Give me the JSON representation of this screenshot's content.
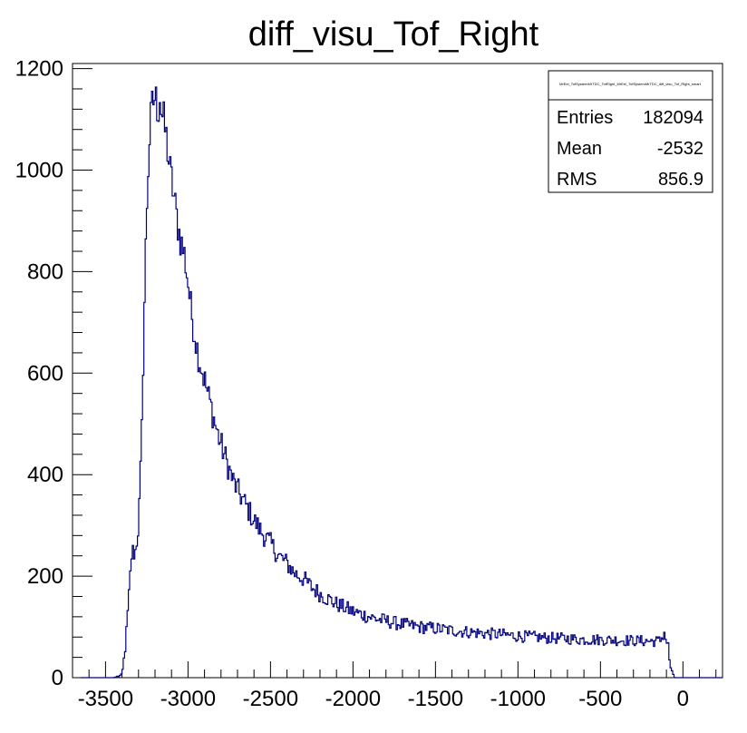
{
  "chart_data": {
    "type": "histogram",
    "title": "diff_visu_Tof_Right",
    "xlabel": "",
    "ylabel": "",
    "xlim": [
      -3700,
      240
    ],
    "ylim": [
      0,
      1210
    ],
    "x_ticks": [
      -3500,
      -3000,
      -2500,
      -2000,
      -1500,
      -1000,
      -500,
      0
    ],
    "x_tick_labels": [
      "-3500",
      "-3000",
      "-2500",
      "-2000",
      "-1500",
      "-1000",
      "-500",
      "0"
    ],
    "y_ticks": [
      0,
      200,
      400,
      600,
      800,
      1000,
      1200
    ],
    "y_tick_labels": [
      "0",
      "200",
      "400",
      "600",
      "800",
      "1000",
      "1200"
    ],
    "line_color": "#00007f",
    "curve_points": [
      [
        -3650,
        0
      ],
      [
        -3450,
        0
      ],
      [
        -3400,
        5
      ],
      [
        -3380,
        60
      ],
      [
        -3360,
        150
      ],
      [
        -3340,
        250
      ],
      [
        -3320,
        245
      ],
      [
        -3300,
        300
      ],
      [
        -3290,
        380
      ],
      [
        -3280,
        480
      ],
      [
        -3270,
        650
      ],
      [
        -3260,
        800
      ],
      [
        -3250,
        920
      ],
      [
        -3240,
        1010
      ],
      [
        -3230,
        1080
      ],
      [
        -3215,
        1130
      ],
      [
        -3200,
        1145
      ],
      [
        -3190,
        1130
      ],
      [
        -3180,
        1120
      ],
      [
        -3170,
        1150
      ],
      [
        -3160,
        1110
      ],
      [
        -3150,
        1100
      ],
      [
        -3130,
        1060
      ],
      [
        -3110,
        1000
      ],
      [
        -3090,
        960
      ],
      [
        -3070,
        910
      ],
      [
        -3050,
        870
      ],
      [
        -3020,
        830
      ],
      [
        -3000,
        780
      ],
      [
        -2980,
        720
      ],
      [
        -2960,
        680
      ],
      [
        -2940,
        640
      ],
      [
        -2910,
        600
      ],
      [
        -2880,
        560
      ],
      [
        -2850,
        520
      ],
      [
        -2820,
        480
      ],
      [
        -2790,
        450
      ],
      [
        -2760,
        420
      ],
      [
        -2730,
        390
      ],
      [
        -2700,
        370
      ],
      [
        -2650,
        340
      ],
      [
        -2600,
        310
      ],
      [
        -2550,
        285
      ],
      [
        -2500,
        265
      ],
      [
        -2450,
        240
      ],
      [
        -2400,
        225
      ],
      [
        -2350,
        205
      ],
      [
        -2300,
        195
      ],
      [
        -2250,
        178
      ],
      [
        -2200,
        165
      ],
      [
        -2150,
        155
      ],
      [
        -2100,
        145
      ],
      [
        -2050,
        138
      ],
      [
        -2000,
        130
      ],
      [
        -1950,
        125
      ],
      [
        -1900,
        120
      ],
      [
        -1850,
        115
      ],
      [
        -1800,
        112
      ],
      [
        -1750,
        108
      ],
      [
        -1700,
        105
      ],
      [
        -1600,
        100
      ],
      [
        -1500,
        97
      ],
      [
        -1400,
        93
      ],
      [
        -1300,
        90
      ],
      [
        -1200,
        87
      ],
      [
        -1100,
        85
      ],
      [
        -1000,
        82
      ],
      [
        -900,
        80
      ],
      [
        -800,
        78
      ],
      [
        -700,
        77
      ],
      [
        -600,
        75
      ],
      [
        -500,
        75
      ],
      [
        -400,
        74
      ],
      [
        -300,
        73
      ],
      [
        -200,
        72
      ],
      [
        -140,
        72
      ],
      [
        -110,
        90
      ],
      [
        -100,
        70
      ],
      [
        -90,
        65
      ],
      [
        -80,
        30
      ],
      [
        -70,
        15
      ],
      [
        -60,
        5
      ],
      [
        -50,
        0
      ],
      [
        240,
        0
      ]
    ]
  },
  "stats_box": {
    "header": "MrEel_TofSystemMrTDC_TofRight_MrEel_TofSystemMrTDC_diff_visu_Tof_Right_smart",
    "rows": [
      {
        "name": "Entries",
        "value": "182094"
      },
      {
        "name": "Mean",
        "value": "-2532"
      },
      {
        "name": "RMS",
        "value": "856.9"
      }
    ]
  }
}
